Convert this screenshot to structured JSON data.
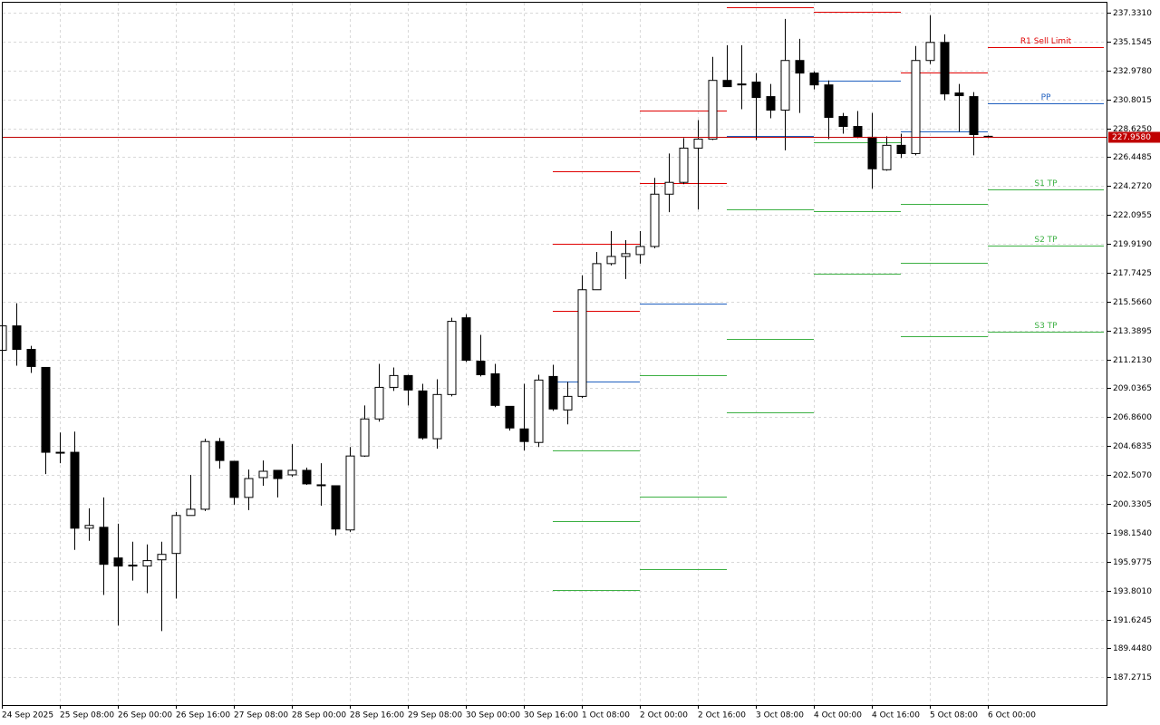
{
  "chart_data": {
    "type": "candlestick",
    "categories": [
      "24 Sep 2025",
      null,
      null,
      null,
      "25 Sep 08:00",
      null,
      null,
      null,
      "26 Sep 00:00",
      null,
      null,
      null,
      "26 Sep 16:00",
      null,
      null,
      null,
      "27 Sep 08:00",
      null,
      null,
      null,
      "28 Sep 00:00",
      null,
      null,
      null,
      "28 Sep 16:00",
      null,
      null,
      null,
      "29 Sep 08:00",
      null,
      null,
      null,
      "30 Sep 00:00",
      null,
      null,
      null,
      "30 Sep 16:00",
      null,
      null,
      null,
      "1 Oct 08:00",
      null,
      null,
      null,
      "2 Oct 00:00",
      null,
      null,
      null,
      "2 Oct 16:00",
      null,
      null,
      null,
      "3 Oct 08:00",
      null,
      null,
      null,
      "4 Oct 00:00",
      null,
      null,
      null,
      "4 Oct 16:00",
      null,
      null,
      null,
      "5 Oct 08:00",
      null,
      null,
      null,
      "6 Oct 00:00"
    ],
    "open": [
      211.9,
      213.74,
      211.97,
      210.61,
      204.22,
      204.22,
      198.5,
      198.57,
      196.26,
      195.65,
      195.65,
      196.12,
      196.6,
      199.46,
      199.93,
      205.03,
      203.54,
      200.82,
      202.31,
      202.86,
      202.52,
      202.86,
      201.77,
      201.7,
      198.37,
      203.94,
      206.73,
      209.11,
      210.0,
      208.84,
      205.24,
      208.57,
      214.35,
      211.08,
      210.13,
      207.68,
      205.98,
      204.96,
      209.93,
      207.41,
      208.43,
      216.46,
      218.43,
      218.97,
      219.11,
      219.72,
      223.66,
      224.55,
      227.13,
      227.81,
      232.23,
      231.96,
      232.1,
      231.01,
      229.99,
      233.73,
      232.78,
      231.89,
      229.51,
      228.76,
      227.95,
      225.5,
      227.34,
      226.72,
      233.73,
      235.09,
      231.28,
      231.01,
      228.02
    ],
    "high": [
      214.14,
      215.44,
      212.24,
      210.61,
      205.71,
      205.78,
      200.0,
      200.82,
      198.84,
      197.48,
      197.28,
      197.48,
      199.73,
      202.52,
      205.24,
      205.3,
      203.54,
      202.92,
      203.6,
      202.86,
      204.83,
      203.06,
      203.4,
      201.7,
      204.62,
      207.75,
      210.88,
      210.61,
      210.06,
      209.38,
      209.72,
      214.35,
      214.62,
      213.06,
      210.88,
      207.68,
      209.38,
      210.06,
      210.81,
      209.52,
      217.54,
      219.31,
      220.88,
      220.2,
      220.88,
      224.89,
      226.72,
      227.88,
      229.24,
      234.0,
      234.88,
      234.88,
      232.78,
      231.96,
      236.86,
      235.36,
      232.91,
      232.23,
      229.78,
      229.92,
      229.78,
      228.02,
      228.22,
      234.82,
      237.13,
      235.7,
      231.96,
      231.35,
      228.08
    ],
    "low": [
      211.02,
      210.74,
      210.2,
      202.58,
      203.4,
      196.87,
      197.55,
      193.47,
      191.16,
      194.56,
      193.61,
      190.75,
      193.2,
      199.66,
      199.8,
      202.99,
      200.27,
      199.86,
      201.7,
      200.82,
      202.38,
      201.77,
      200.2,
      197.96,
      198.23,
      203.88,
      206.53,
      208.84,
      207.75,
      205.17,
      204.49,
      208.43,
      211.02,
      209.93,
      207.62,
      205.85,
      204.35,
      204.62,
      207.34,
      206.32,
      208.3,
      216.46,
      218.29,
      217.27,
      218.43,
      219.58,
      222.3,
      224.41,
      222.51,
      227.74,
      231.76,
      230.06,
      227.74,
      229.38,
      226.96,
      229.78,
      231.55,
      227.81,
      228.22,
      227.88,
      224.07,
      225.43,
      226.38,
      226.59,
      233.46,
      230.74,
      228.36,
      226.59,
      227.88
    ],
    "close": [
      213.74,
      211.97,
      210.68,
      204.22,
      204.2,
      198.5,
      198.71,
      195.78,
      195.65,
      195.72,
      196.06,
      196.53,
      199.46,
      199.93,
      205.03,
      203.6,
      200.82,
      202.24,
      202.79,
      202.24,
      202.86,
      201.84,
      201.7,
      198.44,
      203.94,
      206.73,
      209.11,
      210.0,
      208.91,
      205.3,
      208.57,
      214.08,
      211.15,
      210.06,
      207.75,
      206.05,
      205.03,
      209.66,
      207.48,
      208.43,
      216.46,
      218.43,
      218.97,
      219.18,
      219.72,
      223.66,
      224.55,
      227.13,
      227.81,
      232.23,
      231.76,
      231.89,
      230.94,
      229.99,
      233.73,
      232.78,
      231.89,
      229.44,
      228.76,
      227.95,
      225.57,
      227.34,
      226.72,
      233.73,
      235.09,
      231.21,
      231.08,
      228.15,
      227.95
    ],
    "up_color": "#ffffff",
    "down_color": "#000000",
    "ylim": [
      185.18,
      238.08
    ],
    "yticks": [
      {
        "value": 237.331,
        "label": "237.3310"
      },
      {
        "value": 235.1545,
        "label": "235.1545"
      },
      {
        "value": 232.978,
        "label": "232.9780"
      },
      {
        "value": 230.8015,
        "label": "230.8015"
      },
      {
        "value": 228.625,
        "label": "228.6250"
      },
      {
        "value": 226.4485,
        "label": "226.4485"
      },
      {
        "value": 224.272,
        "label": "224.2720"
      },
      {
        "value": 222.0955,
        "label": "222.0955"
      },
      {
        "value": 219.919,
        "label": "219.9190"
      },
      {
        "value": 217.7425,
        "label": "217.7425"
      },
      {
        "value": 215.566,
        "label": "215.5660"
      },
      {
        "value": 213.3895,
        "label": "213.3895"
      },
      {
        "value": 211.213,
        "label": "211.2130"
      },
      {
        "value": 209.0365,
        "label": "209.0365"
      },
      {
        "value": 206.86,
        "label": "206.8600"
      },
      {
        "value": 204.6835,
        "label": "204.6835"
      },
      {
        "value": 202.507,
        "label": "202.5070"
      },
      {
        "value": 200.3305,
        "label": "200.3305"
      },
      {
        "value": 198.154,
        "label": "198.1540"
      },
      {
        "value": 195.9775,
        "label": "195.9775"
      },
      {
        "value": 193.801,
        "label": "193.8010"
      },
      {
        "value": 191.6245,
        "label": "191.6245"
      },
      {
        "value": 189.448,
        "label": "189.4480"
      },
      {
        "value": 187.2715,
        "label": "187.2715"
      }
    ],
    "grid": true,
    "current_price": {
      "value": 227.958,
      "label": "227.9580",
      "color": "#c00000"
    },
    "resistance_color": "#e00000",
    "pivot_color": "#1f5fbf",
    "support_color": "#3cb043",
    "levels": [
      {
        "start_index": 38,
        "resistance": [
          225.36,
          219.92,
          214.89
        ],
        "pivot": 209.52,
        "support": [
          204.35,
          199.05,
          193.88
        ]
      },
      {
        "start_index": 44,
        "resistance": [
          229.99,
          224.48
        ],
        "pivot": 215.44,
        "support": [
          210.0,
          200.88,
          195.44
        ]
      },
      {
        "start_index": 50,
        "resistance": [
          237.74
        ],
        "pivot": 228.02,
        "support": [
          222.51,
          212.78,
          207.21
        ]
      },
      {
        "start_index": 56,
        "resistance": [
          237.4
        ],
        "pivot": 232.23,
        "support": [
          227.54,
          222.37,
          217.68
        ]
      },
      {
        "start_index": 62,
        "resistance": [
          232.84
        ],
        "pivot": 228.36,
        "support": [
          222.92,
          218.5,
          212.99
        ]
      },
      {
        "start_index": 68,
        "resistance": [
          234.75
        ],
        "pivot": 230.53,
        "support": [
          224.0,
          219.79,
          213.33
        ],
        "resistance_labels": [
          "R1 Sell Limit"
        ],
        "pivot_label": "PP",
        "support_labels": [
          "S1 TP",
          "S2 TP",
          "S3 TP"
        ]
      }
    ]
  }
}
